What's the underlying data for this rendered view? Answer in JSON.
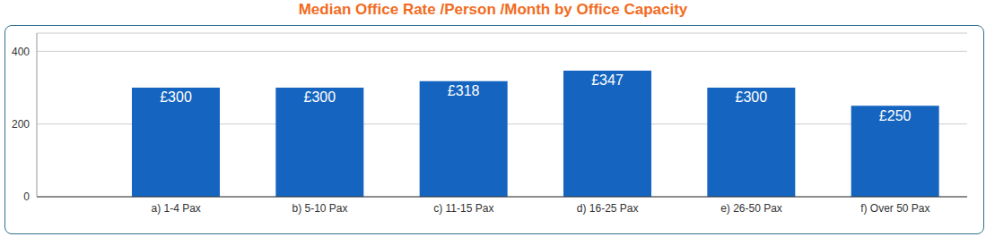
{
  "chart_data": {
    "type": "bar",
    "title": "Median Office Rate /Person /Month by Office Capacity",
    "categories": [
      "a) 1-4 Pax",
      "b) 5-10 Pax",
      "c) 11-15 Pax",
      "d) 16-25 Pax",
      "e) 26-50 Pax",
      "f) Over 50 Pax"
    ],
    "values": [
      300,
      300,
      318,
      347,
      300,
      250
    ],
    "value_labels": [
      "£300",
      "£300",
      "£318",
      "£347",
      "£300",
      "£250"
    ],
    "color": "#1565c0",
    "ylim": [
      0,
      450
    ],
    "yticks": [
      0,
      200,
      400
    ],
    "grid": true,
    "data_labels": true
  }
}
